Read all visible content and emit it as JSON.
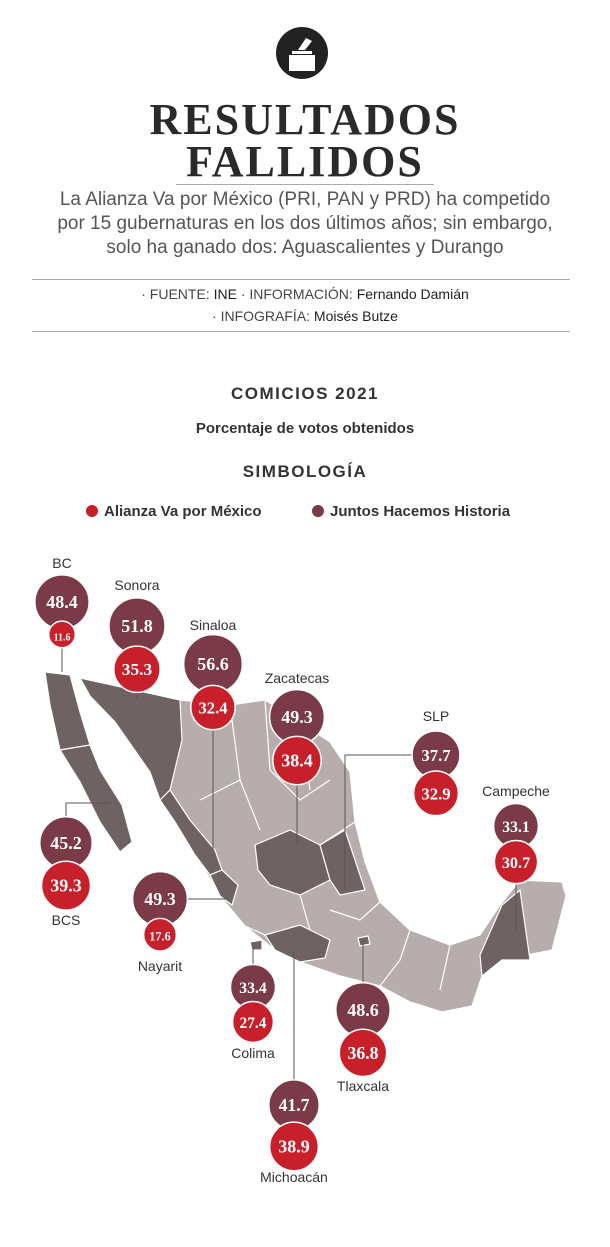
{
  "header": {
    "title": [
      "RESULTADOS",
      "FALLIDOS"
    ],
    "subtitle": "La Alianza Va por México (PRI, PAN y PRD) ha competido por 15 gubernaturas en los dos últimos años; sin embargo, solo ha ganado dos: Aguascalientes y Durango",
    "credits": {
      "source_label": "· FUENTE:",
      "source": "INE",
      "info_label": "· INFORMACIÓN:",
      "info": "Fernando Damián",
      "graphic_label": "· INFOGRAFÍA:",
      "graphic": "Moisés Butze"
    }
  },
  "section": {
    "title": "COMICIOS 2021",
    "subtitle": "Porcentaje de votos obtenidos",
    "legend_title": "SIMBOLOGÍA",
    "legend": [
      {
        "name": "Alianza Va por México",
        "color": "#c8202a"
      },
      {
        "name": "Juntos Hacemos Historia",
        "color": "#7a3a47"
      }
    ]
  },
  "states": [
    {
      "name": "BC",
      "juntos": 48.4,
      "alianza": 11.6
    },
    {
      "name": "Sonora",
      "juntos": 51.8,
      "alianza": 35.3
    },
    {
      "name": "Sinaloa",
      "juntos": 56.6,
      "alianza": 32.4
    },
    {
      "name": "Zacatecas",
      "juntos": 49.3,
      "alianza": 38.4
    },
    {
      "name": "SLP",
      "juntos": 37.7,
      "alianza": 32.9
    },
    {
      "name": "Campeche",
      "juntos": 33.1,
      "alianza": 30.7
    },
    {
      "name": "BCS",
      "juntos": 45.2,
      "alianza": 39.3
    },
    {
      "name": "Nayarit",
      "juntos": 49.3,
      "alianza": 17.6
    },
    {
      "name": "Colima",
      "juntos": 33.4,
      "alianza": 27.4
    },
    {
      "name": "Tlaxcala",
      "juntos": 48.6,
      "alianza": 36.8
    },
    {
      "name": "Michoacán",
      "juntos": 41.7,
      "alianza": 38.9
    }
  ]
}
